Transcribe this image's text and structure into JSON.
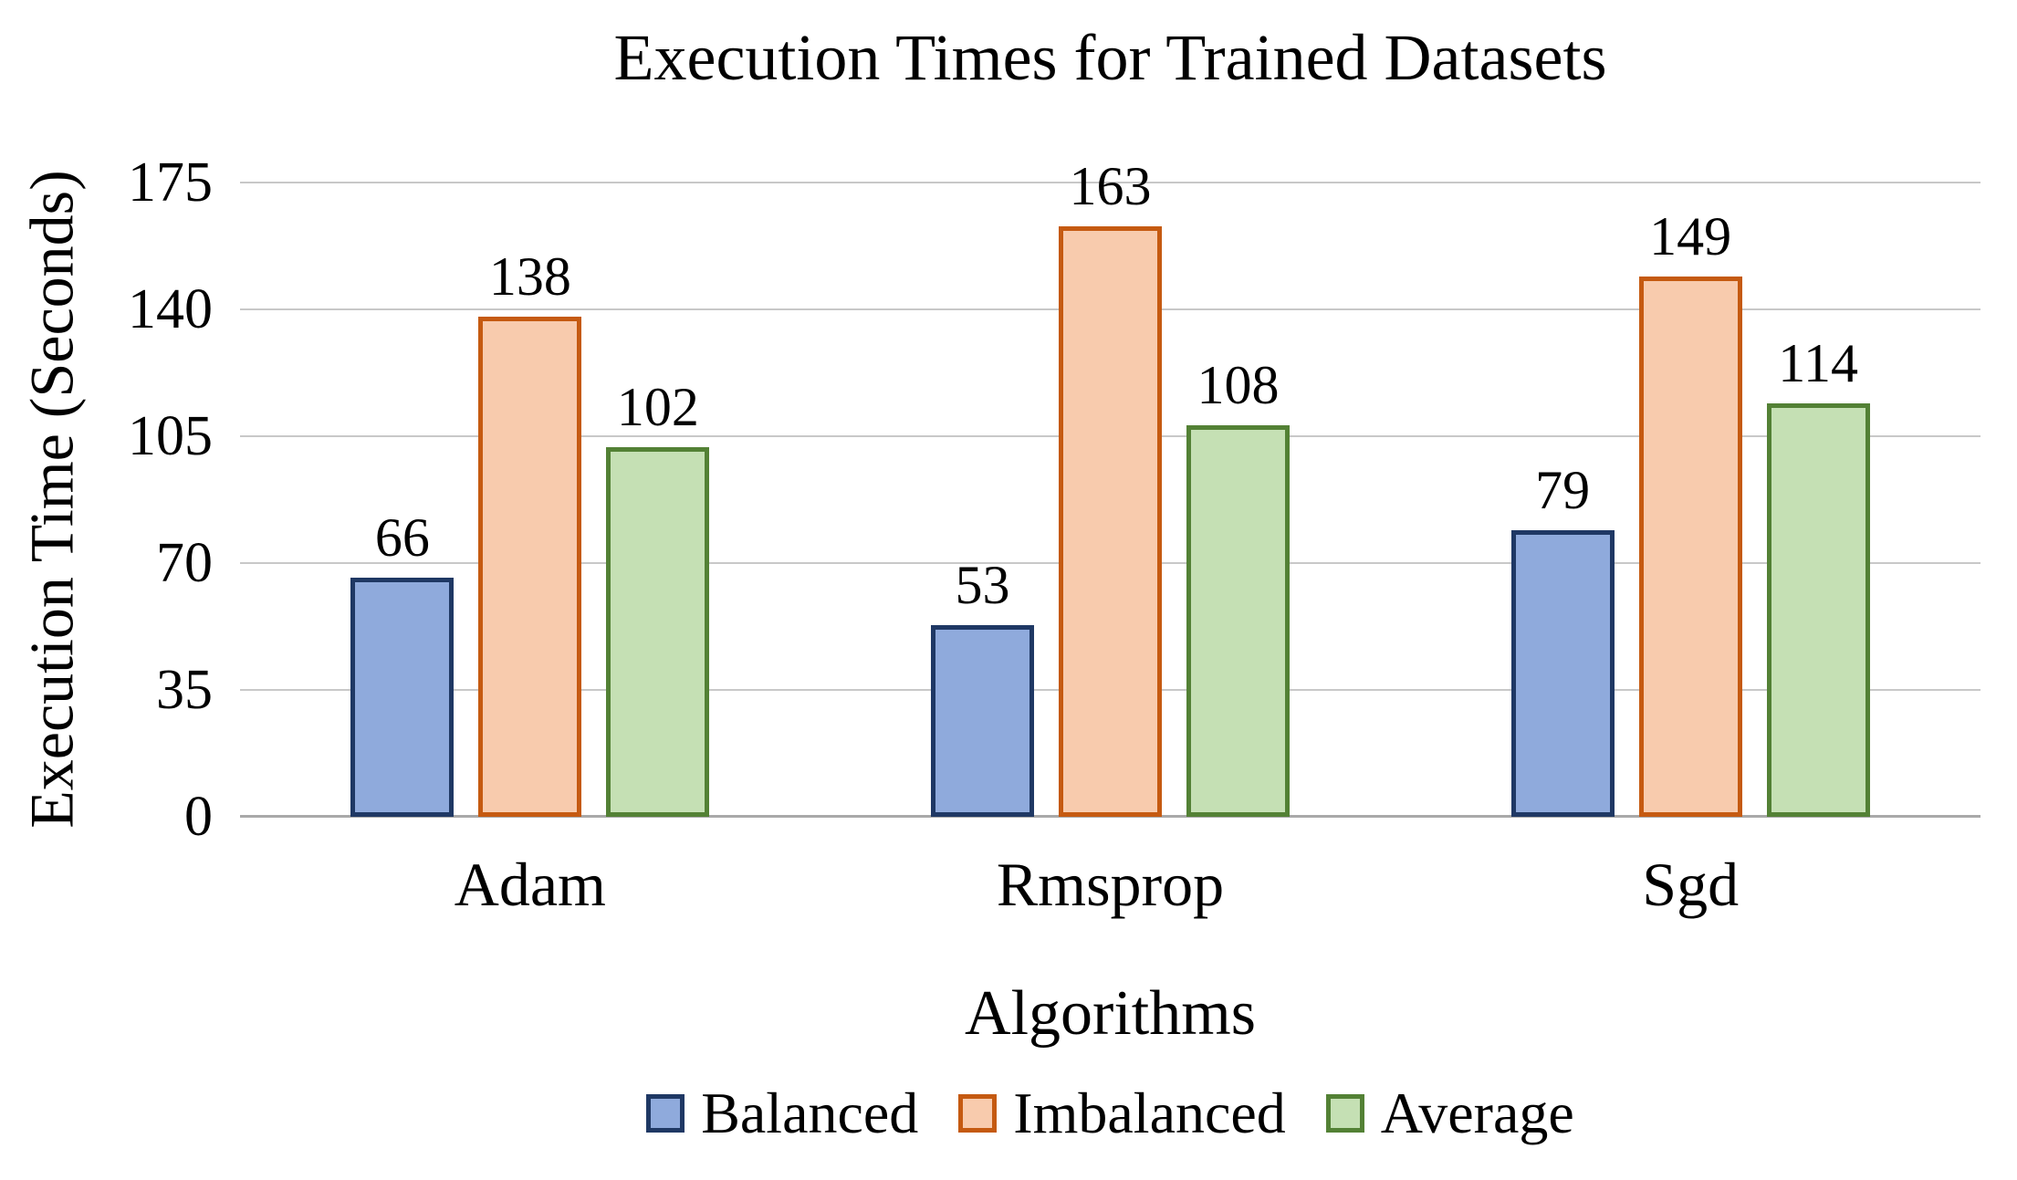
{
  "chart_data": {
    "type": "bar",
    "title": "Execution Times for Trained Datasets",
    "xlabel": "Algorithms",
    "ylabel": "Execution Time (Seconds)",
    "categories": [
      "Adam",
      "Rmsprop",
      "Sgd"
    ],
    "series": [
      {
        "name": "Balanced",
        "values": [
          66,
          53,
          79
        ],
        "fill": "#8FAADC",
        "border": "#1F3864"
      },
      {
        "name": "Imbalanced",
        "values": [
          138,
          163,
          149
        ],
        "fill": "#F8CBAD",
        "border": "#C55A11"
      },
      {
        "name": "Average",
        "values": [
          102,
          108,
          114
        ],
        "fill": "#C5E0B4",
        "border": "#538135"
      }
    ],
    "y_ticks": [
      0,
      35,
      70,
      105,
      140,
      175
    ],
    "ylim": [
      0,
      175
    ],
    "grid": true,
    "legend_position": "bottom",
    "colors": {
      "gridline": "#C8C8C8",
      "axis_line": "#A9A9A9",
      "text": "#000000",
      "background": "#FFFFFF"
    }
  }
}
